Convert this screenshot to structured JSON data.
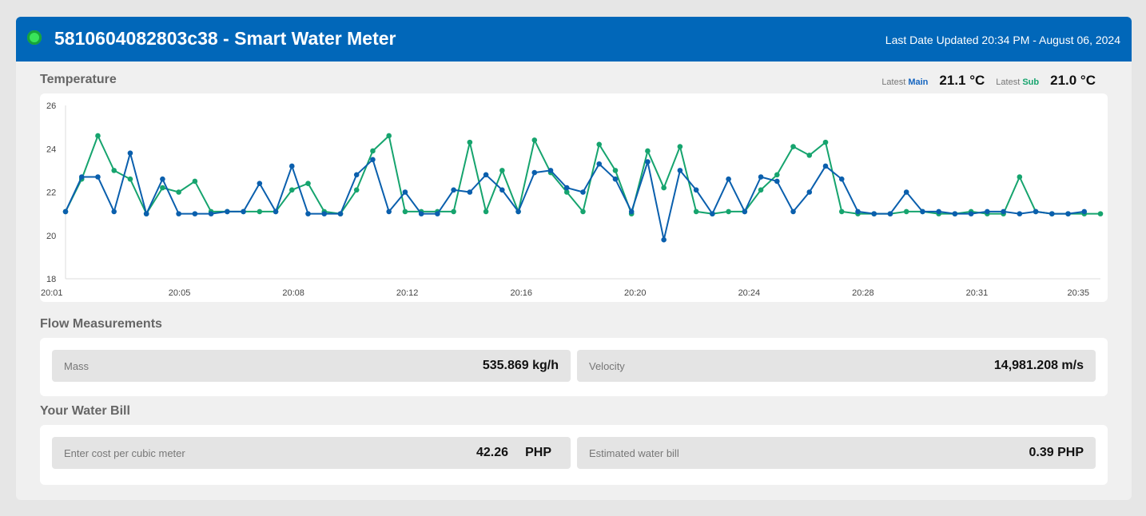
{
  "header": {
    "title": "5810604082803c38 - Smart Water Meter",
    "last_updated": "Last Date Updated 20:34 PM - August 06, 2024",
    "status_color": "#39e35a"
  },
  "temperature": {
    "section_title": "Temperature",
    "latest_label": "Latest",
    "main_label": "Main",
    "main_value": "21.1 °C",
    "sub_label": "Sub",
    "sub_value": "21.0 °C"
  },
  "chart_data": {
    "type": "line",
    "ylim": [
      18,
      26
    ],
    "y_ticks": [
      "18",
      "20",
      "22",
      "24",
      "26"
    ],
    "x_ticks": [
      "20:01",
      "20:05",
      "20:08",
      "20:12",
      "20:16",
      "20:20",
      "20:24",
      "20:28",
      "20:31",
      "20:35"
    ],
    "grid": false,
    "series": [
      {
        "name": "Sub",
        "color": "#16a46e",
        "values": [
          21.1,
          22.6,
          24.6,
          23.0,
          22.6,
          21.0,
          22.2,
          22.0,
          22.5,
          21.1,
          21.1,
          21.1,
          21.1,
          21.1,
          22.1,
          22.4,
          21.1,
          21.0,
          22.1,
          23.9,
          24.6,
          21.1,
          21.1,
          21.1,
          21.1,
          24.3,
          21.1,
          23.0,
          21.1,
          24.4,
          22.9,
          22.0,
          21.1,
          24.2,
          23.0,
          21.0,
          23.9,
          22.2,
          24.1,
          21.1,
          21.0,
          21.1,
          21.1,
          22.1,
          22.8,
          24.1,
          23.7,
          24.3,
          21.1,
          21.0,
          21.0,
          21.0,
          21.1,
          21.1,
          21.0,
          21.0,
          21.1,
          21.0,
          21.0,
          22.7,
          21.1,
          21.0,
          21.0,
          21.0,
          21.0
        ]
      },
      {
        "name": "Main",
        "color": "#0a5fad",
        "values": [
          21.1,
          22.7,
          22.7,
          21.1,
          23.8,
          21.0,
          22.6,
          21.0,
          21.0,
          21.0,
          21.1,
          21.1,
          22.4,
          21.1,
          23.2,
          21.0,
          21.0,
          21.0,
          22.8,
          23.5,
          21.1,
          22.0,
          21.0,
          21.0,
          22.1,
          22.0,
          22.8,
          22.1,
          21.1,
          22.9,
          23.0,
          22.2,
          22.0,
          23.3,
          22.6,
          21.1,
          23.4,
          19.8,
          23.0,
          22.1,
          21.0,
          22.6,
          21.1,
          22.7,
          22.5,
          21.1,
          22.0,
          23.2,
          22.6,
          21.1,
          21.0,
          21.0,
          22.0,
          21.1,
          21.1,
          21.0,
          21.0,
          21.1,
          21.1,
          21.0,
          21.1,
          21.0,
          21.0,
          21.1,
          null
        ]
      }
    ]
  },
  "flow": {
    "section_title": "Flow Measurements",
    "mass_label": "Mass",
    "mass_value": "535.869 kg/h",
    "velocity_label": "Velocity",
    "velocity_value": "14,981.208 m/s"
  },
  "bill": {
    "section_title": "Your Water Bill",
    "cost_label": "Enter cost per cubic meter",
    "cost_value": "42.26",
    "cost_unit": "PHP",
    "estimate_label": "Estimated water bill",
    "estimate_value": "0.39 PHP"
  }
}
